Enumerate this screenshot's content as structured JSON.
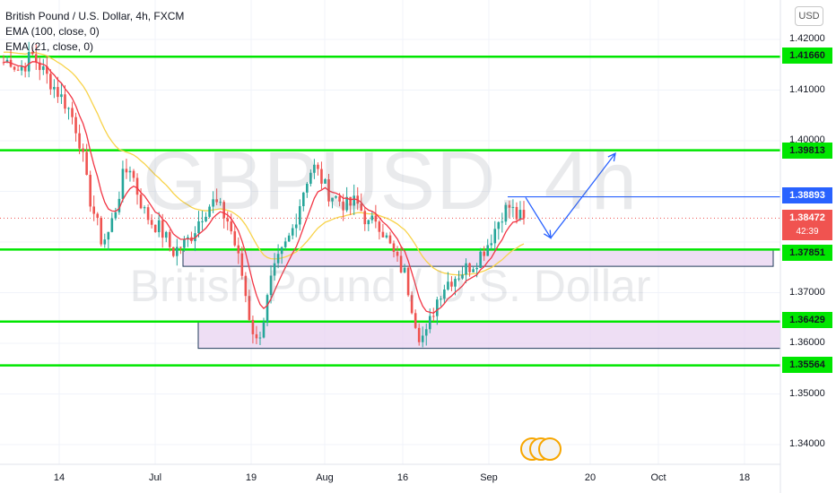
{
  "legend": {
    "title": "British Pound / U.S. Dollar, 4h, FXCM",
    "ema100": "EMA (100, close, 0)",
    "ema21": "EMA (21, close, 0)"
  },
  "watermark": {
    "symbol": "GBPUSD, 4h",
    "description": "British Pound / U.S. Dollar"
  },
  "currency_button": "USD",
  "price_tags": {
    "r1": "1.41660",
    "r2": "1.39813",
    "target": "1.38893",
    "current_price": "1.38472",
    "countdown": "42:39",
    "s1": "1.37851",
    "s2": "1.36429",
    "s3": "1.35564"
  },
  "y_axis_labels": [
    "1.42000",
    "1.41000",
    "1.40000",
    "1.37000",
    "1.36000",
    "1.35000",
    "1.34000"
  ],
  "x_axis_labels": [
    "14",
    "Jul",
    "19",
    "Aug",
    "16",
    "Sep",
    "20",
    "Oct",
    "18"
  ],
  "colors": {
    "up": "#26a69a",
    "down": "#ef5350",
    "ema21": "#f23645",
    "ema100": "#f8d34a",
    "level_line": "#00e600",
    "zone_fill": "#e8d3f0",
    "projection": "#2962ff"
  },
  "chart_data": {
    "type": "candlestick",
    "symbol": "GBPUSD",
    "timeframe": "4h",
    "ylim": [
      1.335,
      1.425
    ],
    "horizontal_levels": [
      1.4166,
      1.39813,
      1.38893,
      1.37851,
      1.36429,
      1.35564
    ],
    "current_price": 1.38472,
    "zones": [
      {
        "from": 1.3752,
        "to": 1.3784
      },
      {
        "from": 1.359,
        "to": 1.3643
      }
    ],
    "projection_path": [
      1.3888,
      1.3808,
      1.3975
    ],
    "price_path": [
      1.4155,
      1.416,
      1.414,
      1.415,
      1.417,
      1.415,
      1.413,
      1.411,
      1.409,
      1.407,
      1.404,
      1.399,
      1.39,
      1.385,
      1.38,
      1.382,
      1.387,
      1.393,
      1.395,
      1.39,
      1.386,
      1.384,
      1.383,
      1.381,
      1.378,
      1.379,
      1.38,
      1.382,
      1.385,
      1.387,
      1.388,
      1.386,
      1.384,
      1.379,
      1.373,
      1.365,
      1.36,
      1.365,
      1.372,
      1.376,
      1.379,
      1.382,
      1.387,
      1.392,
      1.395,
      1.393,
      1.39,
      1.389,
      1.388,
      1.387,
      1.388,
      1.386,
      1.383,
      1.385,
      1.382,
      1.379,
      1.376,
      1.374,
      1.368,
      1.362,
      1.361,
      1.366,
      1.37,
      1.372,
      1.373,
      1.374,
      1.375,
      1.376,
      1.378,
      1.38,
      1.383,
      1.386,
      1.387,
      1.385,
      1.3847
    ]
  }
}
